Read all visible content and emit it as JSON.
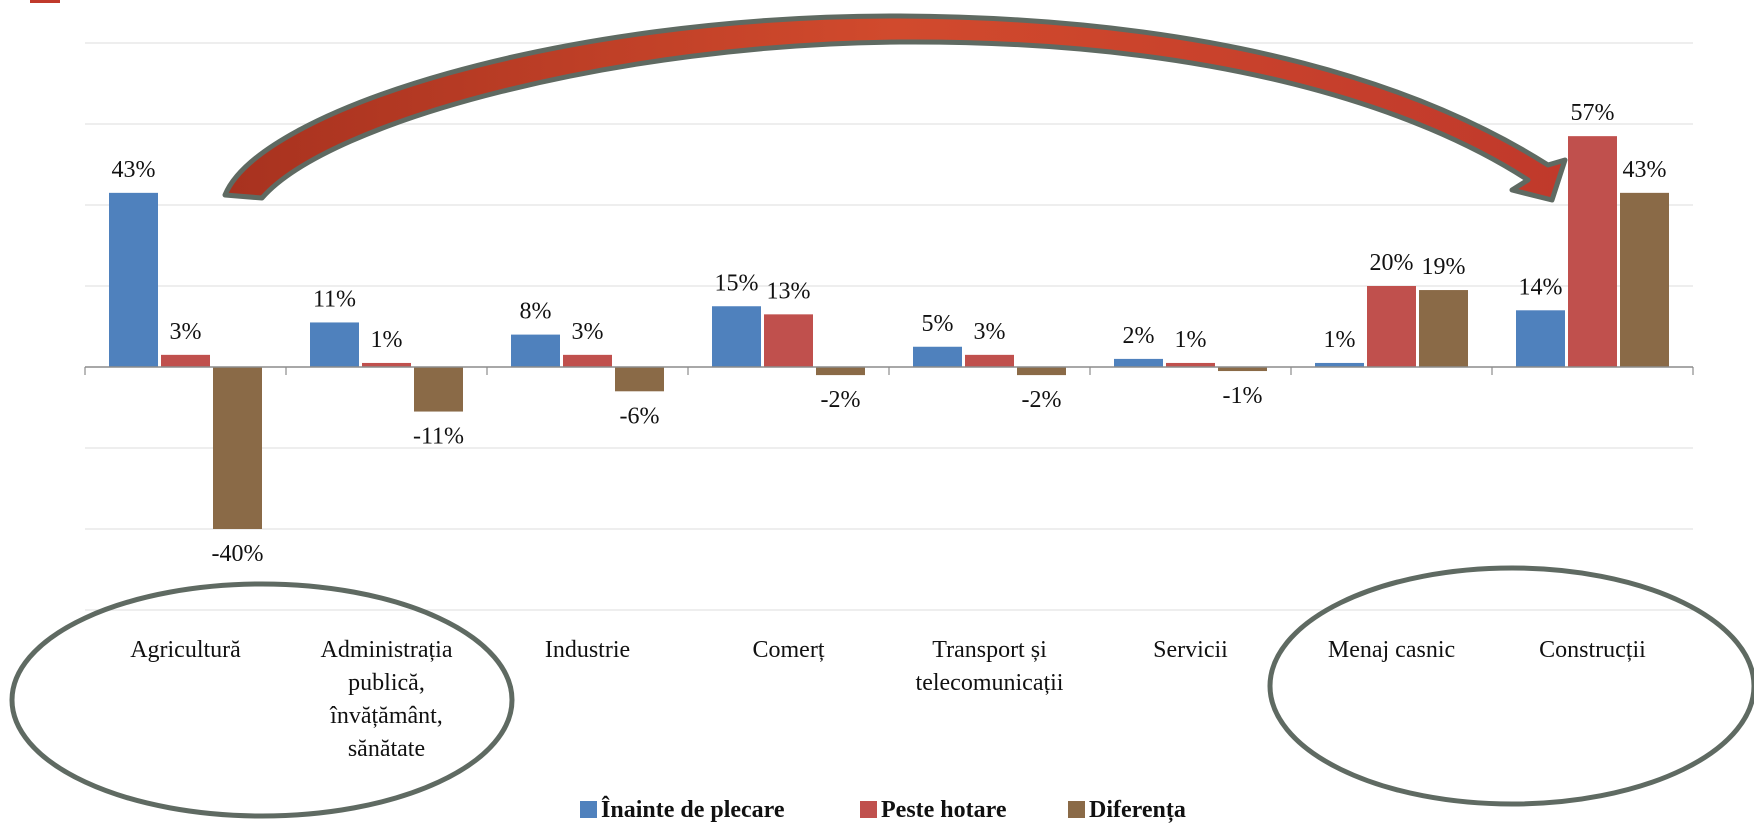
{
  "chart_data": {
    "type": "bar",
    "categories": [
      [
        "Agricultură"
      ],
      [
        "Administrația",
        "publică,",
        "învățământ,",
        "sănătate"
      ],
      [
        "Industrie"
      ],
      [
        "Comerț"
      ],
      [
        "Transport și",
        "telecomunicații"
      ],
      [
        "Servicii"
      ],
      [
        "Menaj casnic"
      ],
      [
        "Construcții"
      ]
    ],
    "series": [
      {
        "name": "Înainte de plecare",
        "color": "#4f81bd",
        "values": [
          43,
          11,
          8,
          15,
          5,
          2,
          1,
          14
        ],
        "labels": [
          "43%",
          "11%",
          "8%",
          "15%",
          "5%",
          "2%",
          "1%",
          "14%"
        ]
      },
      {
        "name": "Peste hotare",
        "color": "#c0504d",
        "values": [
          3,
          1,
          3,
          13,
          3,
          1,
          20,
          57
        ],
        "labels": [
          "3%",
          "1%",
          "3%",
          "13%",
          "3%",
          "1%",
          "20%",
          "57%"
        ]
      },
      {
        "name": "Diferența",
        "color": "#8a6a47",
        "values": [
          -40,
          -11,
          -6,
          -2,
          -2,
          -1,
          19,
          43
        ],
        "labels": [
          "-40%",
          "-11%",
          "-6%",
          "-2%",
          "-2%",
          "-1%",
          "19%",
          "43%"
        ]
      }
    ],
    "ylim": [
      -60,
      80
    ],
    "grid": true,
    "legend_position": "bottom",
    "annotations": {
      "ellipses": [
        "around Agricultură and Administrația publică",
        "around Menaj casnic and Construcții"
      ],
      "arrow": "curved red arrow from Agricultură to Construcții",
      "arrow_color": "#c0392b",
      "ellipse_color": "#5f6a62"
    }
  }
}
